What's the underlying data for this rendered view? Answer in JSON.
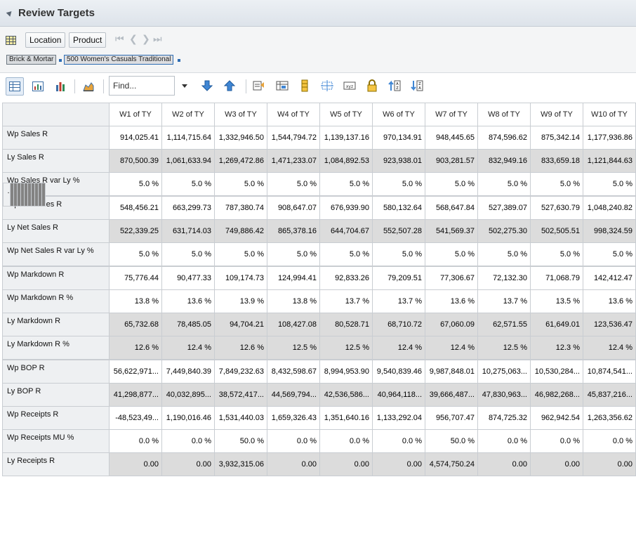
{
  "title": "Review Targets",
  "context": {
    "buttons": [
      "Location",
      "Product"
    ],
    "nav_glyphs": [
      "⏮",
      "❮",
      "❯",
      "⏭"
    ],
    "breadcrumbs": [
      "Brick & Mortar",
      "500 Women's Casuals Traditional"
    ]
  },
  "toolbar": {
    "find_placeholder": "Find..."
  },
  "columns": [
    "W1 of TY",
    "W2 of TY",
    "W3 of TY",
    "W4 of TY",
    "W5 of TY",
    "W6 of TY",
    "W7 of TY",
    "W8 of TY",
    "W9 of TY",
    "W10 of TY"
  ],
  "rows": [
    {
      "label": "Wp Sales R",
      "style": "white",
      "values": [
        "914,025.41",
        "1,114,715.64",
        "1,332,946.50",
        "1,544,794.72",
        "1,139,137.16",
        "970,134.91",
        "948,445.65",
        "874,596.62",
        "875,342.14",
        "1,177,936.86"
      ]
    },
    {
      "label": "Ly Sales R",
      "style": "gray",
      "values": [
        "870,500.39",
        "1,061,633.94",
        "1,269,472.86",
        "1,471,233.07",
        "1,084,892.53",
        "923,938.01",
        "903,281.57",
        "832,949.16",
        "833,659.18",
        "1,121,844.63"
      ]
    },
    {
      "label": "Wp Sales R var Ly %",
      "style": "white",
      "values": [
        "5.0 %",
        "5.0 %",
        "5.0 %",
        "5.0 %",
        "5.0 %",
        "5.0 %",
        "5.0 %",
        "5.0 %",
        "5.0 %",
        "5.0 %"
      ]
    },
    {
      "label": ".",
      "style": "sep",
      "values": [
        "",
        "",
        "",
        "",
        "",
        "",
        "",
        "",
        "",
        ""
      ]
    },
    {
      "label": "Wp Net Sales R",
      "style": "white",
      "values": [
        "548,456.21",
        "663,299.73",
        "787,380.74",
        "908,647.07",
        "676,939.90",
        "580,132.64",
        "568,647.84",
        "527,389.07",
        "527,630.79",
        "1,048,240.82"
      ]
    },
    {
      "label": "Ly Net Sales R",
      "style": "gray",
      "values": [
        "522,339.25",
        "631,714.03",
        "749,886.42",
        "865,378.16",
        "644,704.67",
        "552,507.28",
        "541,569.37",
        "502,275.30",
        "502,505.51",
        "998,324.59"
      ]
    },
    {
      "label": "Wp Net Sales R var Ly %",
      "style": "white",
      "values": [
        "5.0 %",
        "5.0 %",
        "5.0 %",
        "5.0 %",
        "5.0 %",
        "5.0 %",
        "5.0 %",
        "5.0 %",
        "5.0 %",
        "5.0 %"
      ]
    },
    {
      "label": ".",
      "style": "sep",
      "values": [
        "",
        "",
        "",
        "",
        "",
        "",
        "",
        "",
        "",
        ""
      ]
    },
    {
      "label": "Wp Markdown R",
      "style": "white",
      "values": [
        "75,776.44",
        "90,477.33",
        "109,174.73",
        "124,994.41",
        "92,833.26",
        "79,209.51",
        "77,306.67",
        "72,132.30",
        "71,068.79",
        "142,412.47"
      ]
    },
    {
      "label": "Wp Markdown R %",
      "style": "white",
      "values": [
        "13.8 %",
        "13.6 %",
        "13.9 %",
        "13.8 %",
        "13.7 %",
        "13.7 %",
        "13.6 %",
        "13.7 %",
        "13.5 %",
        "13.6 %"
      ]
    },
    {
      "label": "Ly Markdown R",
      "style": "gray",
      "values": [
        "65,732.68",
        "78,485.05",
        "94,704.21",
        "108,427.08",
        "80,528.71",
        "68,710.72",
        "67,060.09",
        "62,571.55",
        "61,649.01",
        "123,536.47"
      ]
    },
    {
      "label": "Ly Markdown R %",
      "style": "gray",
      "values": [
        "12.6 %",
        "12.4 %",
        "12.6 %",
        "12.5 %",
        "12.5 %",
        "12.4 %",
        "12.4 %",
        "12.5 %",
        "12.3 %",
        "12.4 %"
      ]
    },
    {
      "label": ".",
      "style": "sep",
      "values": [
        "",
        "",
        "",
        "",
        "",
        "",
        "",
        "",
        "",
        ""
      ]
    },
    {
      "label": "Wp BOP R",
      "style": "white",
      "values": [
        "56,622,971...",
        "7,449,840.39",
        "7,849,232.63",
        "8,432,598.67",
        "8,994,953.90",
        "9,540,839.46",
        "9,987,848.01",
        "10,275,063...",
        "10,530,284...",
        "10,874,541..."
      ]
    },
    {
      "label": "Ly BOP R",
      "style": "gray",
      "values": [
        "41,298,877...",
        "40,032,895...",
        "38,572,417...",
        "44,569,794...",
        "42,536,586...",
        "40,964,118...",
        "39,666,487...",
        "47,830,963...",
        "46,982,268...",
        "45,837,216..."
      ]
    },
    {
      "label": "Wp Receipts R",
      "style": "white",
      "values": [
        "-48,523,49...",
        "1,190,016.46",
        "1,531,440.03",
        "1,659,326.43",
        "1,351,640.16",
        "1,133,292.04",
        "956,707.47",
        "874,725.32",
        "962,942.54",
        "1,263,356.62"
      ]
    },
    {
      "label": "Wp Receipts MU %",
      "style": "white",
      "values": [
        "0.0 %",
        "0.0 %",
        "50.0 %",
        "0.0 %",
        "0.0 %",
        "0.0 %",
        "50.0 %",
        "0.0 %",
        "0.0 %",
        "0.0 %"
      ]
    },
    {
      "label": "Ly Receipts R",
      "style": "gray",
      "values": [
        "0.00",
        "0.00",
        "3,932,315.06",
        "0.00",
        "0.00",
        "0.00",
        "4,574,750.24",
        "0.00",
        "0.00",
        "0.00"
      ]
    }
  ]
}
